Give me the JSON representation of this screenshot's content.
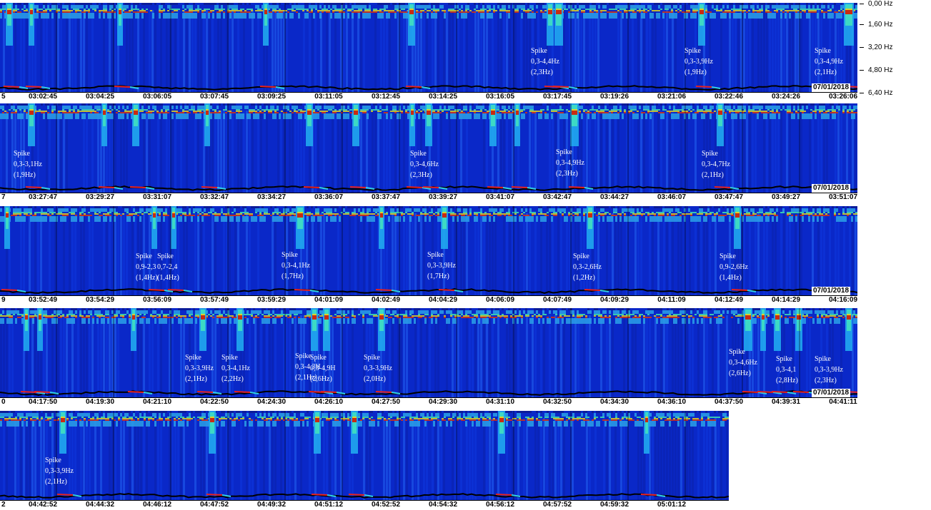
{
  "frequency_axis": [
    "0,00 Hz",
    "1,60 Hz",
    "3,20 Hz",
    "4,80 Hz",
    "6,40 Hz"
  ],
  "colors": {
    "background": "#0a28c8",
    "trace": "#000000",
    "highlight": "#e8201c",
    "accent_cyan": "#30d0e8"
  },
  "rows": [
    {
      "date": "07/01/2018",
      "ticks": [
        "5",
        "03:02:45",
        "03:04:25",
        "03:06:05",
        "03:07:45",
        "03:09:25",
        "03:11:05",
        "03:12:45",
        "03:14:25",
        "03:16:05",
        "03:17:45",
        "03:19:26",
        "03:21:06",
        "03:22:46",
        "03:24:26",
        "03:26:06"
      ],
      "annotations": [
        {
          "lines": [
            "Spike",
            "0,3-4,4Hz",
            "(2,3Hz)"
          ]
        },
        {
          "lines": [
            "Spike",
            "0,3-3,9Hz",
            "(1,9Hz)"
          ]
        },
        {
          "lines": [
            "Spike",
            "0,3-4,9Hz",
            "(2,1Hz)"
          ]
        }
      ]
    },
    {
      "date": "07/01/2018",
      "ticks": [
        "7",
        "03:27:47",
        "03:29:27",
        "03:31:07",
        "03:32:47",
        "03:34:27",
        "03:36:07",
        "03:37:47",
        "03:39:27",
        "03:41:07",
        "03:42:47",
        "03:44:27",
        "03:46:07",
        "03:47:47",
        "03:49:27",
        "03:51:07"
      ],
      "annotations": [
        {
          "lines": [
            "Spike",
            "0,3-3,1Hz",
            "(1,9Hz)"
          ]
        },
        {
          "lines": [
            "Spike",
            "0,3-4,6Hz",
            "(2,3Hz)"
          ]
        },
        {
          "lines": [
            "Spike",
            "0,3-4,9Hz",
            "(2,3Hz)"
          ]
        },
        {
          "lines": [
            "Spike",
            "0,3-4,7Hz",
            "(2,1Hz)"
          ]
        }
      ]
    },
    {
      "date": "07/01/2018",
      "ticks": [
        "9",
        "03:52:49",
        "03:54:29",
        "03:56:09",
        "03:57:49",
        "03:59:29",
        "04:01:09",
        "04:02:49",
        "04:04:29",
        "04:06:09",
        "04:07:49",
        "04:09:29",
        "04:11:09",
        "04:12:49",
        "04:14:29",
        "04:16:09"
      ],
      "annotations": [
        {
          "lines": [
            "Spike",
            "0,9-2,3",
            "(1,4Hz)"
          ]
        },
        {
          "lines": [
            "Spike",
            "0,7-2,4",
            "(1,4Hz)"
          ]
        },
        {
          "lines": [
            "Spike",
            "0,3-4,1Hz",
            "(1,7Hz)"
          ]
        },
        {
          "lines": [
            "Spike",
            "0,3-3,9Hz",
            "(1,7Hz)"
          ]
        },
        {
          "lines": [
            "Spike",
            "0,3-2,6Hz",
            "(1,2Hz)"
          ]
        },
        {
          "lines": [
            "Spike",
            "0,9-2,6Hz",
            "(1,4Hz)"
          ]
        }
      ]
    },
    {
      "date": "07/01/2018",
      "ticks": [
        "0",
        "04:17:50",
        "04:19:30",
        "04:21:10",
        "04:22:50",
        "04:24:30",
        "04:26:10",
        "04:27:50",
        "04:29:30",
        "04:31:10",
        "04:32:50",
        "04:34:30",
        "04:36:10",
        "04:37:50",
        "04:39:31",
        "04:41:11"
      ],
      "annotations": [
        {
          "lines": [
            "Spike",
            "0,3-3,9Hz",
            "(2,1Hz)"
          ]
        },
        {
          "lines": [
            "Spike",
            "0,3-4,1Hz",
            "(2,2Hz)"
          ]
        },
        {
          "lines": [
            "Spike",
            "0,3-4,3H",
            "(2,1Hz)"
          ]
        },
        {
          "lines": [
            "Spike",
            "0,3-4,9H",
            "(2,6Hz)"
          ]
        },
        {
          "lines": [
            "Spike",
            "0,3-3,9Hz",
            "(2,0Hz)"
          ]
        },
        {
          "lines": [
            "Spike",
            "0,3-4,6Hz",
            "(2,6Hz)"
          ]
        },
        {
          "lines": [
            "Spike",
            "0,3-4,1",
            "(2,8Hz)"
          ]
        },
        {
          "lines": [
            "Spike",
            "0,3-3,9Hz",
            "(2,3Hz)"
          ]
        }
      ]
    },
    {
      "date": "",
      "ticks": [
        "2",
        "04:42:52",
        "04:44:32",
        "04:46:12",
        "04:47:52",
        "04:49:32",
        "04:51:12",
        "04:52:52",
        "04:54:32",
        "04:56:12",
        "04:57:52",
        "04:59:32",
        "05:01:12"
      ],
      "annotations": [
        {
          "lines": [
            "Spike",
            "0,3-3,9Hz",
            "(2,1Hz)"
          ]
        }
      ]
    }
  ],
  "chart_data": {
    "type": "heatmap",
    "title": "",
    "xlabel": "",
    "ylabel": "",
    "y_ticks": [
      "0,00 Hz",
      "1,60 Hz",
      "3,20 Hz",
      "4,80 Hz",
      "6,40 Hz"
    ],
    "ylim": [
      0,
      6.4
    ],
    "date": "07/01/2018",
    "x_ticks_per_row": [
      [
        "03:02:45",
        "03:04:25",
        "03:06:05",
        "03:07:45",
        "03:09:25",
        "03:11:05",
        "03:12:45",
        "03:14:25",
        "03:16:05",
        "03:17:45",
        "03:19:26",
        "03:21:06",
        "03:22:46",
        "03:24:26",
        "03:26:06"
      ],
      [
        "03:27:47",
        "03:29:27",
        "03:31:07",
        "03:32:47",
        "03:34:27",
        "03:36:07",
        "03:37:47",
        "03:39:27",
        "03:41:07",
        "03:42:47",
        "03:44:27",
        "03:46:07",
        "03:47:47",
        "03:49:27",
        "03:51:07"
      ],
      [
        "03:52:49",
        "03:54:29",
        "03:56:09",
        "03:57:49",
        "03:59:29",
        "04:01:09",
        "04:02:49",
        "04:04:29",
        "04:06:09",
        "04:07:49",
        "04:09:29",
        "04:11:09",
        "04:12:49",
        "04:14:29",
        "04:16:09"
      ],
      [
        "04:17:50",
        "04:19:30",
        "04:21:10",
        "04:22:50",
        "04:24:30",
        "04:26:10",
        "04:27:50",
        "04:29:30",
        "04:31:10",
        "04:32:50",
        "04:34:30",
        "04:36:10",
        "04:37:50",
        "04:39:31",
        "04:41:11"
      ],
      [
        "04:42:52",
        "04:44:32",
        "04:46:12",
        "04:47:52",
        "04:49:32",
        "04:51:12",
        "04:52:52",
        "04:54:32",
        "04:56:12",
        "04:57:52",
        "04:59:32",
        "05:01:12"
      ]
    ],
    "grid": true,
    "colorscale": [
      "#0a1a9a",
      "#0a3cf0",
      "#20b0f0",
      "#40e0b0",
      "#e0e020",
      "#f04010",
      "#801010"
    ]
  }
}
